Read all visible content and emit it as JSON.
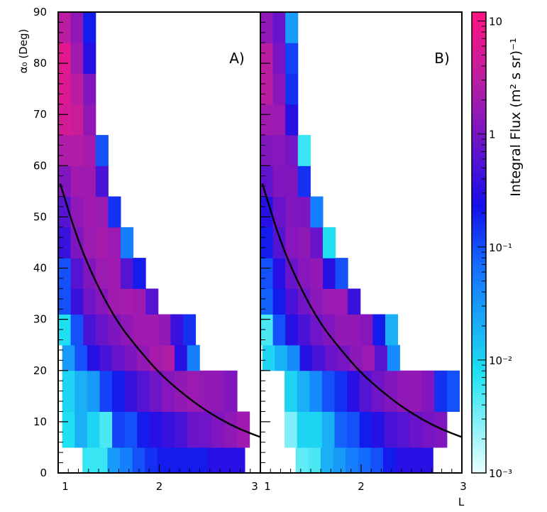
{
  "chart_data": {
    "type": "heatmap",
    "x_axis": {
      "label": "L",
      "ticks_left_panel": [
        "1",
        "2",
        "3"
      ],
      "ticks_right_panel": [
        "1",
        "2",
        "3"
      ],
      "range": [
        1,
        3
      ]
    },
    "y_axis": {
      "label": "α₀ (Deg)",
      "ticks": [
        "0",
        "10",
        "20",
        "30",
        "40",
        "50",
        "60",
        "70",
        "80",
        "90"
      ],
      "range": [
        0,
        90
      ]
    },
    "colorbar": {
      "title": "Integral Flux (m² s sr)⁻¹",
      "scale": "log",
      "range": [
        0.001,
        12
      ],
      "ticks": [
        {
          "value": 10,
          "label": "10"
        },
        {
          "value": 1,
          "label": "1"
        },
        {
          "value": 0.1,
          "label": "10⁻¹"
        },
        {
          "value": 0.01,
          "label": "10⁻²"
        },
        {
          "value": 0.001,
          "label": "10⁻³"
        }
      ]
    },
    "panels": [
      {
        "label": "A)",
        "curve": [
          [
            1.02,
            56.5
          ],
          [
            1.2,
            45
          ],
          [
            1.4,
            36
          ],
          [
            1.6,
            29
          ],
          [
            1.8,
            24
          ],
          [
            2.0,
            19.5
          ],
          [
            2.2,
            16
          ],
          [
            2.4,
            13
          ],
          [
            2.6,
            10.5
          ],
          [
            2.8,
            8.5
          ],
          [
            3.0,
            7
          ]
        ],
        "rows": [
          {
            "alpha_range": [
              0,
              5
            ],
            "L_start": 1.24,
            "values": [
              0.006,
              0.006,
              0.03,
              0.05,
              0.1,
              0.15,
              0.2,
              0.2,
              0.2,
              0.2,
              0.3,
              0.3,
              0.3
            ]
          },
          {
            "alpha_range": [
              5,
              12
            ],
            "L_start": 1.04,
            "values": [
              0.008,
              0.02,
              0.01,
              0.005,
              0.12,
              0.1,
              0.2,
              0.3,
              0.4,
              0.5,
              0.8,
              0.9,
              1.2,
              1.5,
              2.0
            ]
          },
          {
            "alpha_range": [
              12,
              20
            ],
            "L_start": 1.04,
            "values": [
              0.01,
              0.02,
              0.03,
              0.12,
              0.2,
              0.4,
              0.6,
              0.9,
              1.3,
              1.6,
              1.8,
              1.6,
              1.5,
              1.2
            ]
          },
          {
            "alpha_range": [
              20,
              25
            ],
            "L_start": 1.04,
            "values": [
              0.03,
              0.1,
              0.3,
              0.5,
              0.8,
              1.1,
              1.6,
              2.2,
              2.5,
              0.3,
              0.05
            ]
          },
          {
            "alpha_range": [
              25,
              31
            ],
            "L_start": 1.0,
            "values": [
              0.008,
              0.1,
              0.5,
              0.8,
              1.1,
              1.5,
              2.0,
              2.0,
              1.6,
              0.4,
              0.15
            ]
          },
          {
            "alpha_range": [
              31,
              36
            ],
            "L_start": 1.0,
            "values": [
              0.1,
              0.4,
              0.9,
              1.3,
              2.0,
              2.2,
              2.0,
              0.6
            ]
          },
          {
            "alpha_range": [
              36,
              42
            ],
            "L_start": 1.0,
            "values": [
              0.1,
              0.6,
              1.2,
              1.8,
              2.0,
              0.6,
              0.2
            ]
          },
          {
            "alpha_range": [
              42,
              48
            ],
            "L_start": 1.0,
            "values": [
              0.4,
              1.1,
              1.8,
              2.2,
              1.8,
              0.05
            ]
          },
          {
            "alpha_range": [
              48,
              54
            ],
            "L_start": 1.0,
            "values": [
              0.6,
              1.5,
              2.0,
              1.8,
              0.15
            ]
          },
          {
            "alpha_range": [
              54,
              60
            ],
            "L_start": 1.0,
            "values": [
              1.2,
              2.0,
              2.0,
              0.5
            ]
          },
          {
            "alpha_range": [
              60,
              66
            ],
            "L_start": 1.0,
            "values": [
              2.5,
              2.5,
              2.2,
              0.1
            ]
          },
          {
            "alpha_range": [
              66,
              72
            ],
            "L_start": 1.0,
            "values": [
              5.0,
              4.0,
              1.5
            ]
          },
          {
            "alpha_range": [
              72,
              78
            ],
            "L_start": 1.0,
            "values": [
              6.0,
              3.0,
              1.2
            ]
          },
          {
            "alpha_range": [
              78,
              84
            ],
            "L_start": 1.0,
            "values": [
              7.0,
              2.0,
              0.3
            ]
          },
          {
            "alpha_range": [
              84,
              90
            ],
            "L_start": 1.0,
            "values": [
              3.0,
              1.5,
              0.2
            ]
          }
        ]
      },
      {
        "label": "B)",
        "curve": [
          [
            1.02,
            56.5
          ],
          [
            1.2,
            45
          ],
          [
            1.4,
            36
          ],
          [
            1.6,
            29
          ],
          [
            1.8,
            24
          ],
          [
            2.0,
            19.5
          ],
          [
            2.2,
            16
          ],
          [
            2.4,
            13
          ],
          [
            2.6,
            10.5
          ],
          [
            2.8,
            8.5
          ],
          [
            3.0,
            7
          ]
        ],
        "rows": [
          {
            "alpha_range": [
              0,
              5
            ],
            "L_start": 1.35,
            "values": [
              0.004,
              0.005,
              0.02,
              0.03,
              0.05,
              0.07,
              0.1,
              0.2,
              0.3,
              0.3,
              0.3
            ]
          },
          {
            "alpha_range": [
              5,
              12
            ],
            "L_start": 1.24,
            "values": [
              0.003,
              0.01,
              0.01,
              0.02,
              0.08,
              0.1,
              0.2,
              0.3,
              0.5,
              0.6,
              0.8,
              1.0,
              1.2
            ]
          },
          {
            "alpha_range": [
              12,
              20
            ],
            "L_start": 1.24,
            "values": [
              0.01,
              0.02,
              0.04,
              0.1,
              0.15,
              0.3,
              0.6,
              0.9,
              1.2,
              1.5,
              1.6,
              1.2,
              0.15,
              0.1
            ]
          },
          {
            "alpha_range": [
              20,
              25
            ],
            "L_start": 1.02,
            "values": [
              0.01,
              0.02,
              0.04,
              0.3,
              0.5,
              0.8,
              1.0,
              1.4,
              1.8,
              0.6,
              0.04
            ]
          },
          {
            "alpha_range": [
              25,
              31
            ],
            "L_start": 1.0,
            "values": [
              0.005,
              0.1,
              0.3,
              0.5,
              0.9,
              1.2,
              1.6,
              1.6,
              1.3,
              0.2,
              0.02
            ]
          },
          {
            "alpha_range": [
              31,
              36
            ],
            "L_start": 1.0,
            "values": [
              0.08,
              0.2,
              0.5,
              0.9,
              1.4,
              1.8,
              1.8,
              0.4
            ]
          },
          {
            "alpha_range": [
              36,
              42
            ],
            "L_start": 1.0,
            "values": [
              0.1,
              0.3,
              0.8,
              1.3,
              1.6,
              0.3,
              0.1
            ]
          },
          {
            "alpha_range": [
              42,
              48
            ],
            "L_start": 1.0,
            "values": [
              0.2,
              0.6,
              1.3,
              1.5,
              0.8,
              0.008
            ]
          },
          {
            "alpha_range": [
              48,
              54
            ],
            "L_start": 1.0,
            "values": [
              0.3,
              0.8,
              1.2,
              1.1,
              0.05
            ]
          },
          {
            "alpha_range": [
              54,
              60
            ],
            "L_start": 1.0,
            "values": [
              0.7,
              1.2,
              1.2,
              0.15
            ]
          },
          {
            "alpha_range": [
              60,
              66
            ],
            "L_start": 1.0,
            "values": [
              1.2,
              1.3,
              1.0,
              0.006
            ]
          },
          {
            "alpha_range": [
              66,
              72
            ],
            "L_start": 1.0,
            "values": [
              2.0,
              1.8,
              0.3
            ]
          },
          {
            "alpha_range": [
              72,
              78
            ],
            "L_start": 1.0,
            "values": [
              3.0,
              1.3,
              0.15
            ]
          },
          {
            "alpha_range": [
              78,
              84
            ],
            "L_start": 1.0,
            "values": [
              3.0,
              1.0,
              0.12
            ]
          },
          {
            "alpha_range": [
              84,
              90
            ],
            "L_start": 1.0,
            "values": [
              1.5,
              0.8,
              0.03
            ]
          }
        ]
      }
    ]
  },
  "labels": {
    "y_axis_title": "α₀ (Deg)",
    "x_axis_title": "L",
    "panel_a": "A)",
    "panel_b": "B)",
    "colorbar_title": "Integral Flux (m² s sr)⁻¹"
  }
}
